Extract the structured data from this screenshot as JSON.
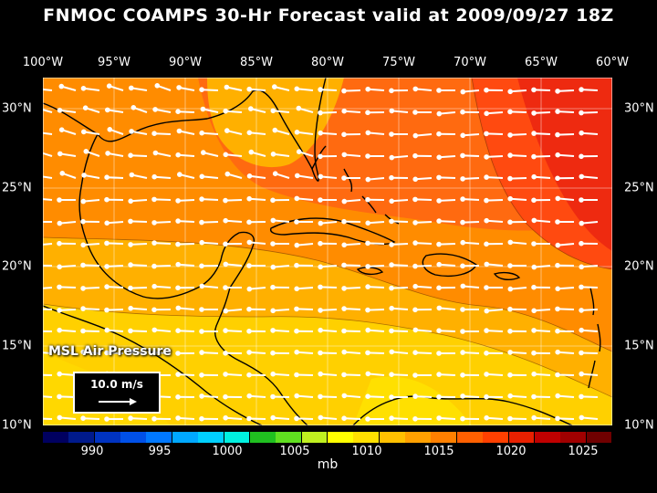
{
  "title": "FNMOC COAMPS 30-Hr Forecast valid at 2009/09/27 18Z",
  "lon_labels": [
    "100°W",
    "95°W",
    "90°W",
    "85°W",
    "80°W",
    "75°W",
    "70°W",
    "65°W",
    "60°W"
  ],
  "lat_labels": [
    "30°N",
    "25°N",
    "20°N",
    "15°N",
    "10°N"
  ],
  "field_label": "MSL Air Pressure",
  "reference_vector": "10.0 m/s",
  "colorbar": {
    "labels": [
      "990",
      "995",
      "1000",
      "1005",
      "1010",
      "1015",
      "1020",
      "1025"
    ],
    "unit": "mb",
    "colors": [
      "#000060",
      "#001a8c",
      "#0033c0",
      "#0050e8",
      "#0078ff",
      "#00a8ff",
      "#00d0ff",
      "#00f0e0",
      "#20c020",
      "#60e020",
      "#c0f020",
      "#ffff00",
      "#ffe000",
      "#ffc000",
      "#ffa000",
      "#ff8000",
      "#ff6000",
      "#ff4000",
      "#e82000",
      "#c00000",
      "#a00000",
      "#700000"
    ]
  },
  "map": {
    "lon_range": [
      -100,
      -60
    ],
    "lat_range": [
      10,
      32
    ],
    "pressure_colors": {
      "1010": "#ffd000",
      "1012": "#ffb000",
      "1014": "#ff8c00",
      "1016": "#ff6a10",
      "1018": "#ff4a10",
      "1020": "#ee2a10"
    }
  }
}
